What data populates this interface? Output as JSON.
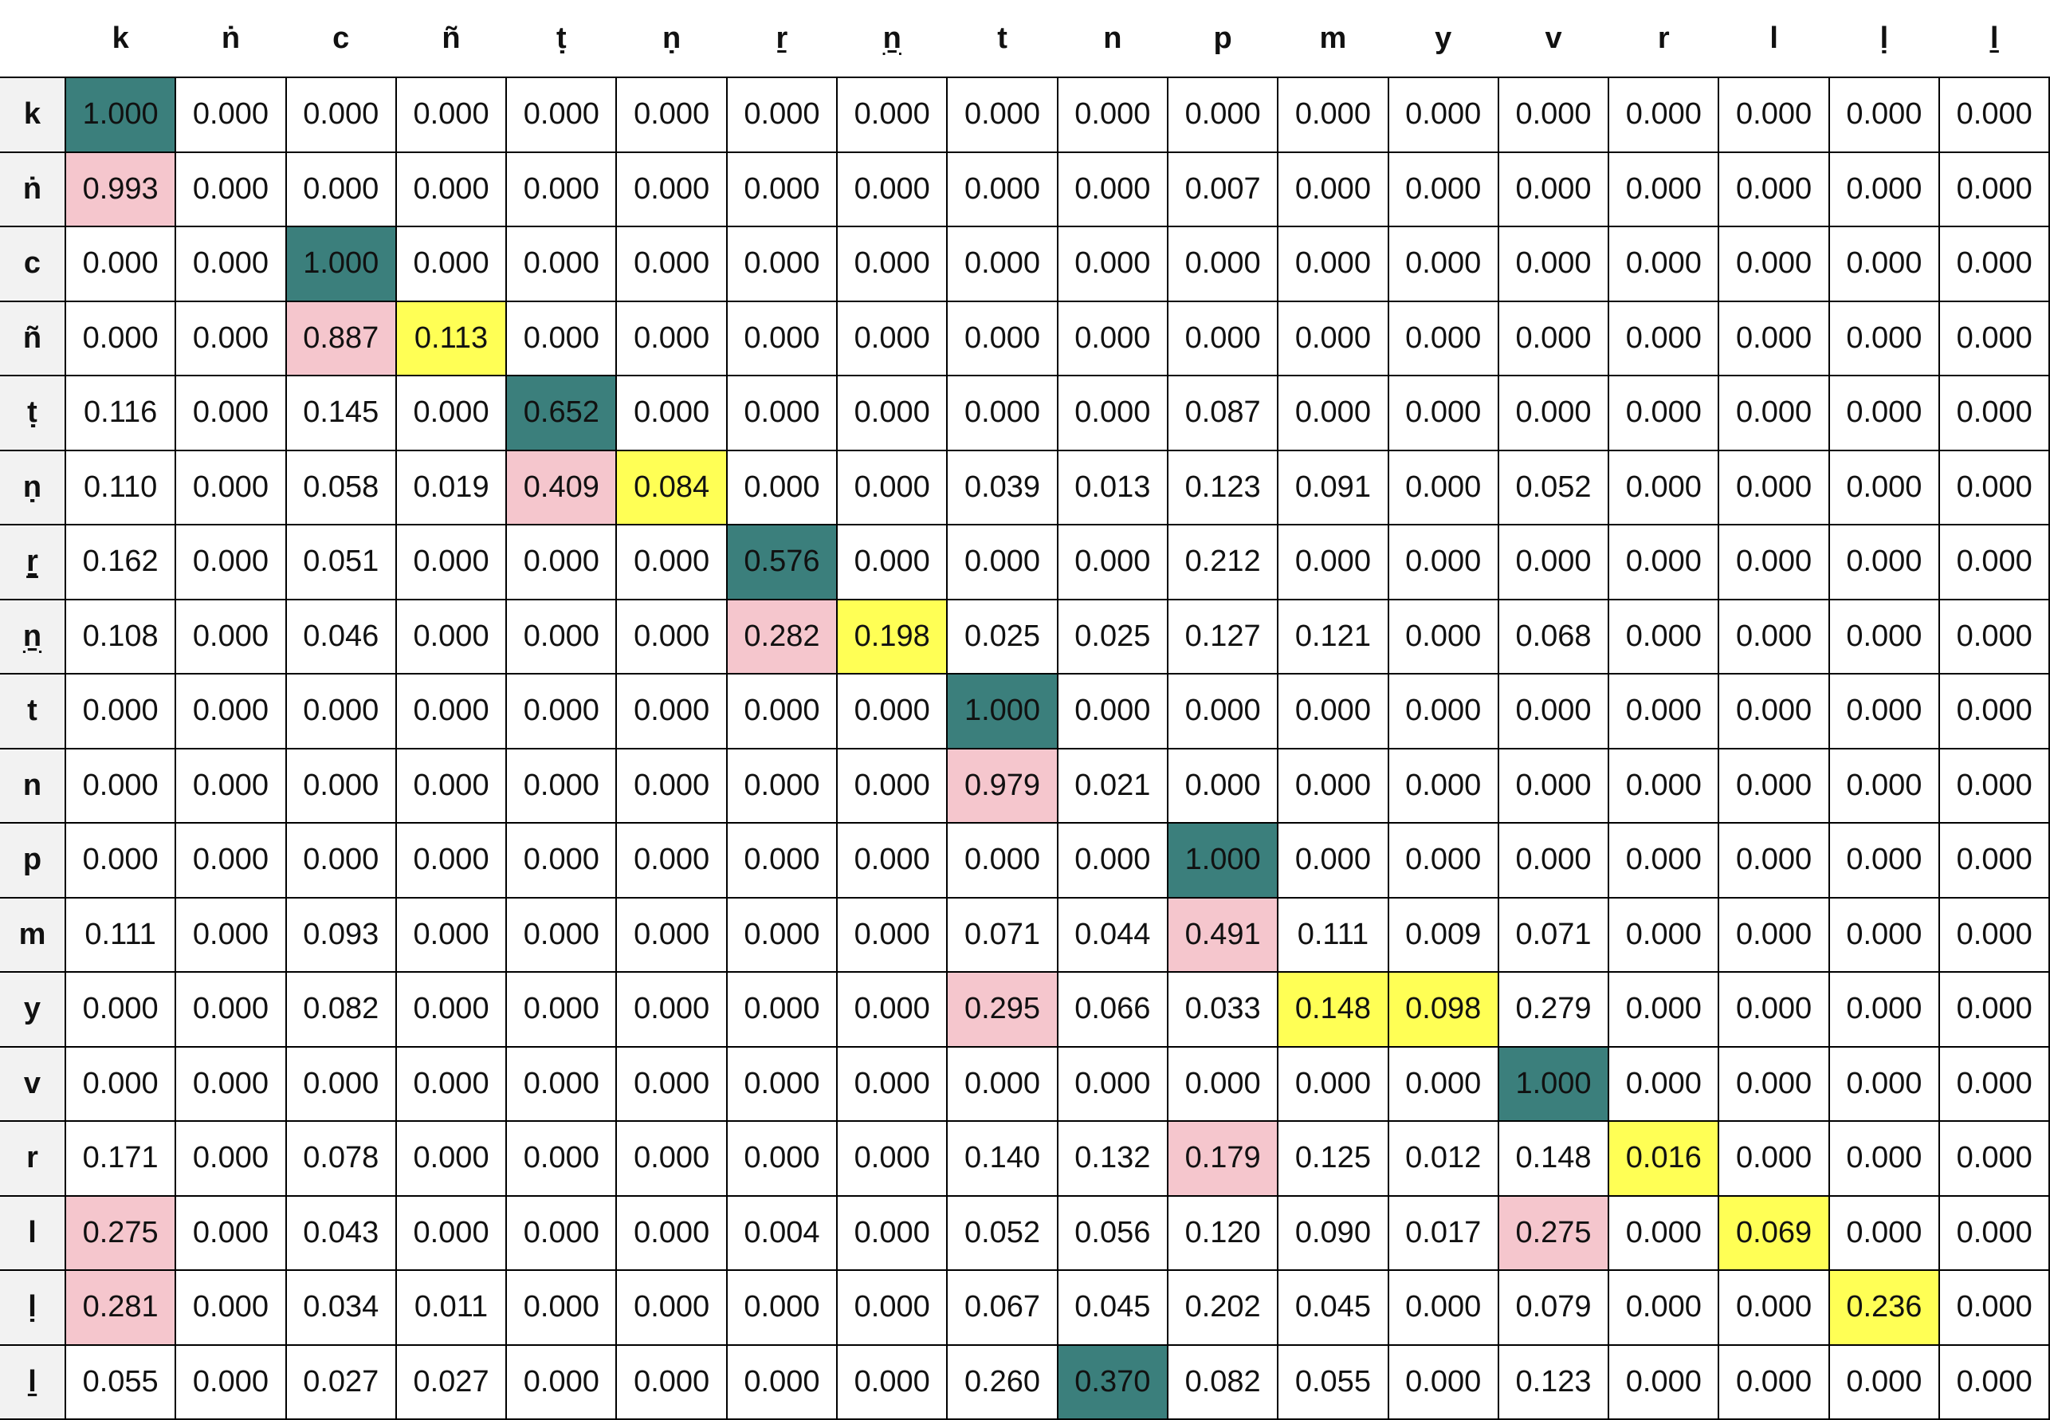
{
  "chart_data": {
    "type": "heatmap",
    "columns": [
      "k",
      "ṅ",
      "c",
      "ñ",
      "ṭ",
      "ṇ",
      "ṟ",
      "ṉ",
      "t",
      "n",
      "p",
      "m",
      "y",
      "v",
      "r",
      "l",
      "ḷ",
      "ḻ"
    ],
    "rows": [
      "k",
      "ṅ",
      "c",
      "ñ",
      "ṭ",
      "ṇ",
      "ṟ",
      "ṉ",
      "t",
      "n",
      "p",
      "m",
      "y",
      "v",
      "r",
      "l",
      "ḷ",
      "ḻ"
    ],
    "values": [
      [
        "1.000",
        "0.000",
        "0.000",
        "0.000",
        "0.000",
        "0.000",
        "0.000",
        "0.000",
        "0.000",
        "0.000",
        "0.000",
        "0.000",
        "0.000",
        "0.000",
        "0.000",
        "0.000",
        "0.000",
        "0.000"
      ],
      [
        "0.993",
        "0.000",
        "0.000",
        "0.000",
        "0.000",
        "0.000",
        "0.000",
        "0.000",
        "0.000",
        "0.000",
        "0.007",
        "0.000",
        "0.000",
        "0.000",
        "0.000",
        "0.000",
        "0.000",
        "0.000"
      ],
      [
        "0.000",
        "0.000",
        "1.000",
        "0.000",
        "0.000",
        "0.000",
        "0.000",
        "0.000",
        "0.000",
        "0.000",
        "0.000",
        "0.000",
        "0.000",
        "0.000",
        "0.000",
        "0.000",
        "0.000",
        "0.000"
      ],
      [
        "0.000",
        "0.000",
        "0.887",
        "0.113",
        "0.000",
        "0.000",
        "0.000",
        "0.000",
        "0.000",
        "0.000",
        "0.000",
        "0.000",
        "0.000",
        "0.000",
        "0.000",
        "0.000",
        "0.000",
        "0.000"
      ],
      [
        "0.116",
        "0.000",
        "0.145",
        "0.000",
        "0.652",
        "0.000",
        "0.000",
        "0.000",
        "0.000",
        "0.000",
        "0.087",
        "0.000",
        "0.000",
        "0.000",
        "0.000",
        "0.000",
        "0.000",
        "0.000"
      ],
      [
        "0.110",
        "0.000",
        "0.058",
        "0.019",
        "0.409",
        "0.084",
        "0.000",
        "0.000",
        "0.039",
        "0.013",
        "0.123",
        "0.091",
        "0.000",
        "0.052",
        "0.000",
        "0.000",
        "0.000",
        "0.000"
      ],
      [
        "0.162",
        "0.000",
        "0.051",
        "0.000",
        "0.000",
        "0.000",
        "0.576",
        "0.000",
        "0.000",
        "0.000",
        "0.212",
        "0.000",
        "0.000",
        "0.000",
        "0.000",
        "0.000",
        "0.000",
        "0.000"
      ],
      [
        "0.108",
        "0.000",
        "0.046",
        "0.000",
        "0.000",
        "0.000",
        "0.282",
        "0.198",
        "0.025",
        "0.025",
        "0.127",
        "0.121",
        "0.000",
        "0.068",
        "0.000",
        "0.000",
        "0.000",
        "0.000"
      ],
      [
        "0.000",
        "0.000",
        "0.000",
        "0.000",
        "0.000",
        "0.000",
        "0.000",
        "0.000",
        "1.000",
        "0.000",
        "0.000",
        "0.000",
        "0.000",
        "0.000",
        "0.000",
        "0.000",
        "0.000",
        "0.000"
      ],
      [
        "0.000",
        "0.000",
        "0.000",
        "0.000",
        "0.000",
        "0.000",
        "0.000",
        "0.000",
        "0.979",
        "0.021",
        "0.000",
        "0.000",
        "0.000",
        "0.000",
        "0.000",
        "0.000",
        "0.000",
        "0.000"
      ],
      [
        "0.000",
        "0.000",
        "0.000",
        "0.000",
        "0.000",
        "0.000",
        "0.000",
        "0.000",
        "0.000",
        "0.000",
        "1.000",
        "0.000",
        "0.000",
        "0.000",
        "0.000",
        "0.000",
        "0.000",
        "0.000"
      ],
      [
        "0.111",
        "0.000",
        "0.093",
        "0.000",
        "0.000",
        "0.000",
        "0.000",
        "0.000",
        "0.071",
        "0.044",
        "0.491",
        "0.111",
        "0.009",
        "0.071",
        "0.000",
        "0.000",
        "0.000",
        "0.000"
      ],
      [
        "0.000",
        "0.000",
        "0.082",
        "0.000",
        "0.000",
        "0.000",
        "0.000",
        "0.000",
        "0.295",
        "0.066",
        "0.033",
        "0.148",
        "0.098",
        "0.279",
        "0.000",
        "0.000",
        "0.000",
        "0.000"
      ],
      [
        "0.000",
        "0.000",
        "0.000",
        "0.000",
        "0.000",
        "0.000",
        "0.000",
        "0.000",
        "0.000",
        "0.000",
        "0.000",
        "0.000",
        "0.000",
        "1.000",
        "0.000",
        "0.000",
        "0.000",
        "0.000"
      ],
      [
        "0.171",
        "0.000",
        "0.078",
        "0.000",
        "0.000",
        "0.000",
        "0.000",
        "0.000",
        "0.140",
        "0.132",
        "0.179",
        "0.125",
        "0.012",
        "0.148",
        "0.016",
        "0.000",
        "0.000",
        "0.000"
      ],
      [
        "0.275",
        "0.000",
        "0.043",
        "0.000",
        "0.000",
        "0.000",
        "0.004",
        "0.000",
        "0.052",
        "0.056",
        "0.120",
        "0.090",
        "0.017",
        "0.275",
        "0.000",
        "0.069",
        "0.000",
        "0.000"
      ],
      [
        "0.281",
        "0.000",
        "0.034",
        "0.011",
        "0.000",
        "0.000",
        "0.000",
        "0.000",
        "0.067",
        "0.045",
        "0.202",
        "0.045",
        "0.000",
        "0.079",
        "0.000",
        "0.000",
        "0.236",
        "0.000"
      ],
      [
        "0.055",
        "0.000",
        "0.027",
        "0.027",
        "0.000",
        "0.000",
        "0.000",
        "0.000",
        "0.260",
        "0.370",
        "0.082",
        "0.055",
        "0.000",
        "0.123",
        "0.000",
        "0.000",
        "0.000",
        "0.000"
      ]
    ],
    "highlights": [
      [
        "best",
        "",
        "",
        "",
        "",
        "",
        "",
        "",
        "",
        "",
        "",
        "",
        "",
        "",
        "",
        "",
        "",
        ""
      ],
      [
        "conf",
        "",
        "",
        "",
        "",
        "",
        "",
        "",
        "",
        "",
        "",
        "",
        "",
        "",
        "",
        "",
        "",
        ""
      ],
      [
        "",
        "",
        "best",
        "",
        "",
        "",
        "",
        "",
        "",
        "",
        "",
        "",
        "",
        "",
        "",
        "",
        "",
        ""
      ],
      [
        "",
        "",
        "conf",
        "also",
        "",
        "",
        "",
        "",
        "",
        "",
        "",
        "",
        "",
        "",
        "",
        "",
        "",
        ""
      ],
      [
        "",
        "",
        "",
        "",
        "best",
        "",
        "",
        "",
        "",
        "",
        "",
        "",
        "",
        "",
        "",
        "",
        "",
        ""
      ],
      [
        "",
        "",
        "",
        "",
        "conf",
        "also",
        "",
        "",
        "",
        "",
        "",
        "",
        "",
        "",
        "",
        "",
        "",
        ""
      ],
      [
        "",
        "",
        "",
        "",
        "",
        "",
        "best",
        "",
        "",
        "",
        "",
        "",
        "",
        "",
        "",
        "",
        "",
        ""
      ],
      [
        "",
        "",
        "",
        "",
        "",
        "",
        "conf",
        "also",
        "",
        "",
        "",
        "",
        "",
        "",
        "",
        "",
        "",
        ""
      ],
      [
        "",
        "",
        "",
        "",
        "",
        "",
        "",
        "",
        "best",
        "",
        "",
        "",
        "",
        "",
        "",
        "",
        "",
        ""
      ],
      [
        "",
        "",
        "",
        "",
        "",
        "",
        "",
        "",
        "conf",
        "",
        "",
        "",
        "",
        "",
        "",
        "",
        "",
        ""
      ],
      [
        "",
        "",
        "",
        "",
        "",
        "",
        "",
        "",
        "",
        "",
        "best",
        "",
        "",
        "",
        "",
        "",
        "",
        ""
      ],
      [
        "",
        "",
        "",
        "",
        "",
        "",
        "",
        "",
        "",
        "",
        "conf",
        "",
        "",
        "",
        "",
        "",
        "",
        ""
      ],
      [
        "",
        "",
        "",
        "",
        "",
        "",
        "",
        "",
        "conf",
        "",
        "",
        "also",
        "also",
        "",
        "",
        "",
        "",
        ""
      ],
      [
        "",
        "",
        "",
        "",
        "",
        "",
        "",
        "",
        "",
        "",
        "",
        "",
        "",
        "best",
        "",
        "",
        "",
        ""
      ],
      [
        "",
        "",
        "",
        "",
        "",
        "",
        "",
        "",
        "",
        "",
        "conf",
        "",
        "",
        "",
        "also",
        "",
        "",
        ""
      ],
      [
        "conf",
        "",
        "",
        "",
        "",
        "",
        "",
        "",
        "",
        "",
        "",
        "",
        "",
        "conf",
        "",
        "also",
        "",
        ""
      ],
      [
        "conf",
        "",
        "",
        "",
        "",
        "",
        "",
        "",
        "",
        "",
        "",
        "",
        "",
        "",
        "",
        "",
        "also",
        ""
      ],
      [
        "",
        "",
        "",
        "",
        "",
        "",
        "",
        "",
        "",
        "best",
        "",
        "",
        "",
        "",
        "",
        "",
        "",
        ""
      ]
    ],
    "colors": {
      "best": "#3b7f7c",
      "conf": "#f5c6cd",
      "also": "#ffff55",
      "header_bg": "#f2f2f2"
    }
  }
}
